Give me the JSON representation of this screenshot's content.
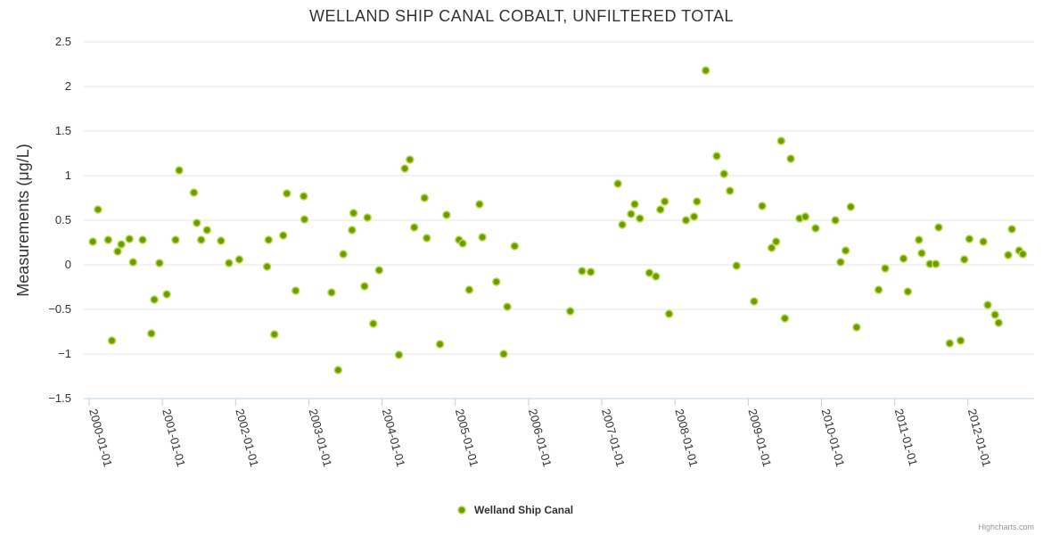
{
  "chart_data": {
    "type": "scatter",
    "title": "WELLAND SHIP CANAL COBALT, UNFILTERED TOTAL",
    "ylabel": "Measurements (μg/L)",
    "xlabel": "",
    "ylim": [
      -1.5,
      2.5
    ],
    "yticks": [
      "2.5",
      "2",
      "1.5",
      "1",
      "0.5",
      "0",
      "−0.5",
      "−1",
      "−1.5"
    ],
    "ytick_values": [
      2.5,
      2,
      1.5,
      1,
      0.5,
      0,
      -0.5,
      -1,
      -1.5
    ],
    "xlim": [
      1999.98,
      2012.75
    ],
    "xtick_labels": [
      "2000-01-01",
      "2001-01-01",
      "2002-01-01",
      "2003-01-01",
      "2004-01-01",
      "2005-01-01",
      "2006-01-01",
      "2007-01-01",
      "2008-01-01",
      "2009-01-01",
      "2010-01-01",
      "2011-01-01",
      "2012-01-01"
    ],
    "xtick_values": [
      2000,
      2001,
      2002,
      2003,
      2004,
      2005,
      2006,
      2007,
      2008,
      2009,
      2010,
      2011,
      2012
    ],
    "legend": "bottom-center",
    "series": [
      {
        "name": "Welland Ship Canal",
        "color": "#6b9b00",
        "points": [
          [
            2000.05,
            0.26
          ],
          [
            2000.12,
            0.62
          ],
          [
            2000.26,
            0.28
          ],
          [
            2000.31,
            -0.85
          ],
          [
            2000.39,
            0.15
          ],
          [
            2000.44,
            0.23
          ],
          [
            2000.55,
            0.29
          ],
          [
            2000.6,
            0.03
          ],
          [
            2000.73,
            0.28
          ],
          [
            2000.85,
            -0.77
          ],
          [
            2000.89,
            -0.39
          ],
          [
            2000.96,
            0.02
          ],
          [
            2001.06,
            -0.33
          ],
          [
            2001.18,
            0.28
          ],
          [
            2001.23,
            1.06
          ],
          [
            2001.43,
            0.81
          ],
          [
            2001.47,
            0.47
          ],
          [
            2001.53,
            0.28
          ],
          [
            2001.61,
            0.39
          ],
          [
            2001.8,
            0.27
          ],
          [
            2001.91,
            0.02
          ],
          [
            2002.05,
            0.06
          ],
          [
            2002.43,
            -0.02
          ],
          [
            2002.45,
            0.28
          ],
          [
            2002.53,
            -0.78
          ],
          [
            2002.65,
            0.33
          ],
          [
            2002.7,
            0.8
          ],
          [
            2002.82,
            -0.29
          ],
          [
            2002.93,
            0.77
          ],
          [
            2002.94,
            0.51
          ],
          [
            2003.31,
            -0.31
          ],
          [
            2003.4,
            -1.18
          ],
          [
            2003.47,
            0.12
          ],
          [
            2003.59,
            0.39
          ],
          [
            2003.61,
            0.58
          ],
          [
            2003.76,
            -0.24
          ],
          [
            2003.8,
            0.53
          ],
          [
            2003.88,
            -0.66
          ],
          [
            2003.96,
            -0.06
          ],
          [
            2004.23,
            -1.01
          ],
          [
            2004.31,
            1.08
          ],
          [
            2004.38,
            1.18
          ],
          [
            2004.44,
            0.42
          ],
          [
            2004.58,
            0.75
          ],
          [
            2004.61,
            0.3
          ],
          [
            2004.79,
            -0.89
          ],
          [
            2004.88,
            0.56
          ],
          [
            2005.05,
            0.28
          ],
          [
            2005.1,
            0.24
          ],
          [
            2005.19,
            -0.28
          ],
          [
            2005.33,
            0.68
          ],
          [
            2005.37,
            0.31
          ],
          [
            2005.56,
            -0.19
          ],
          [
            2005.66,
            -1.0
          ],
          [
            2005.71,
            -0.47
          ],
          [
            2005.81,
            0.21
          ],
          [
            2006.57,
            -0.52
          ],
          [
            2006.73,
            -0.07
          ],
          [
            2006.85,
            -0.08
          ],
          [
            2007.22,
            0.91
          ],
          [
            2007.28,
            0.45
          ],
          [
            2007.4,
            0.57
          ],
          [
            2007.45,
            0.68
          ],
          [
            2007.52,
            0.52
          ],
          [
            2007.65,
            -0.09
          ],
          [
            2007.74,
            -0.13
          ],
          [
            2007.8,
            0.62
          ],
          [
            2007.86,
            0.71
          ],
          [
            2007.92,
            -0.55
          ],
          [
            2008.15,
            0.5
          ],
          [
            2008.26,
            0.54
          ],
          [
            2008.3,
            0.71
          ],
          [
            2008.42,
            2.18
          ],
          [
            2008.57,
            1.22
          ],
          [
            2008.67,
            1.02
          ],
          [
            2008.75,
            0.83
          ],
          [
            2008.84,
            -0.01
          ],
          [
            2009.08,
            -0.41
          ],
          [
            2009.19,
            0.66
          ],
          [
            2009.32,
            0.19
          ],
          [
            2009.38,
            0.26
          ],
          [
            2009.45,
            1.39
          ],
          [
            2009.5,
            -0.6
          ],
          [
            2009.58,
            1.19
          ],
          [
            2009.7,
            0.52
          ],
          [
            2009.78,
            0.54
          ],
          [
            2009.92,
            0.41
          ],
          [
            2010.19,
            0.5
          ],
          [
            2010.26,
            0.03
          ],
          [
            2010.33,
            0.16
          ],
          [
            2010.4,
            0.65
          ],
          [
            2010.48,
            -0.7
          ],
          [
            2010.78,
            -0.28
          ],
          [
            2010.87,
            -0.04
          ],
          [
            2011.12,
            0.07
          ],
          [
            2011.18,
            -0.3
          ],
          [
            2011.33,
            0.28
          ],
          [
            2011.37,
            0.13
          ],
          [
            2011.48,
            0.01
          ],
          [
            2011.56,
            0.01
          ],
          [
            2011.6,
            0.42
          ],
          [
            2011.75,
            -0.88
          ],
          [
            2011.9,
            -0.85
          ],
          [
            2011.95,
            0.06
          ],
          [
            2012.02,
            0.29
          ],
          [
            2012.21,
            0.26
          ],
          [
            2012.27,
            -0.45
          ],
          [
            2012.37,
            -0.56
          ],
          [
            2012.42,
            -0.65
          ],
          [
            2012.55,
            0.11
          ],
          [
            2012.6,
            0.4
          ],
          [
            2012.7,
            0.16
          ],
          [
            2012.75,
            0.12
          ]
        ]
      }
    ]
  },
  "credits": "Highcharts.com"
}
